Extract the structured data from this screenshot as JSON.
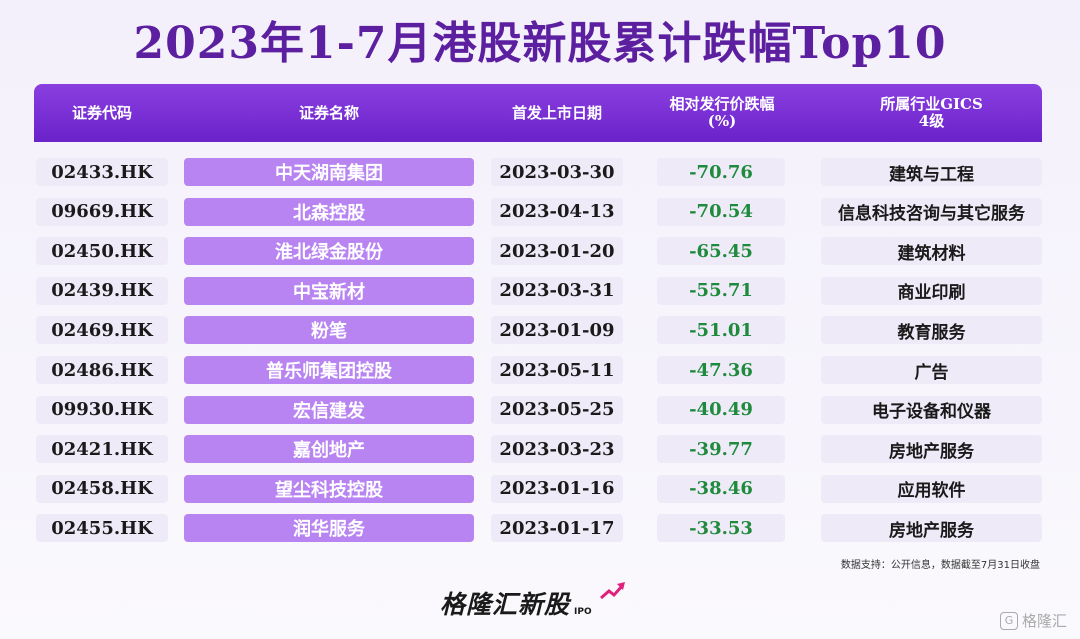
{
  "title": "2023年1-7月港股新股累计跌幅Top10",
  "chart_data": {
    "type": "table",
    "columns": [
      "证券代码",
      "证券名称",
      "首发上市日期",
      "相对发行价跌幅\n(%)",
      "所属行业GICS\n4级"
    ],
    "rows": [
      {
        "code": "02433.HK",
        "name": "中天湖南集团",
        "date": "2023-03-30",
        "pct": "-70.76",
        "industry": "建筑与工程"
      },
      {
        "code": "09669.HK",
        "name": "北森控股",
        "date": "2023-04-13",
        "pct": "-70.54",
        "industry": "信息科技咨询与其它服务"
      },
      {
        "code": "02450.HK",
        "name": "淮北绿金股份",
        "date": "2023-01-20",
        "pct": "-65.45",
        "industry": "建筑材料"
      },
      {
        "code": "02439.HK",
        "name": "中宝新材",
        "date": "2023-03-31",
        "pct": "-55.71",
        "industry": "商业印刷"
      },
      {
        "code": "02469.HK",
        "name": "粉笔",
        "date": "2023-01-09",
        "pct": "-51.01",
        "industry": "教育服务"
      },
      {
        "code": "02486.HK",
        "name": "普乐师集团控股",
        "date": "2023-05-11",
        "pct": "-47.36",
        "industry": "广告"
      },
      {
        "code": "09930.HK",
        "name": "宏信建发",
        "date": "2023-05-25",
        "pct": "-40.49",
        "industry": "电子设备和仪器"
      },
      {
        "code": "02421.HK",
        "name": "嘉创地产",
        "date": "2023-03-23",
        "pct": "-39.77",
        "industry": "房地产服务"
      },
      {
        "code": "02458.HK",
        "name": "望尘科技控股",
        "date": "2023-01-16",
        "pct": "-38.46",
        "industry": "应用软件"
      },
      {
        "code": "02455.HK",
        "name": "润华服务",
        "date": "2023-01-17",
        "pct": "-33.53",
        "industry": "房地产服务"
      }
    ]
  },
  "source": "数据支持：公开信息，数据截至7月31日收盘",
  "logo": {
    "text": "格隆汇新股",
    "sub": "IPO"
  },
  "watermark": {
    "icon": "G",
    "text": "格隆汇"
  },
  "colors": {
    "header": "#7a30d8",
    "name_cell": "#b784f2",
    "negative": "#1e8a3c",
    "title": "#5b1fa0"
  }
}
